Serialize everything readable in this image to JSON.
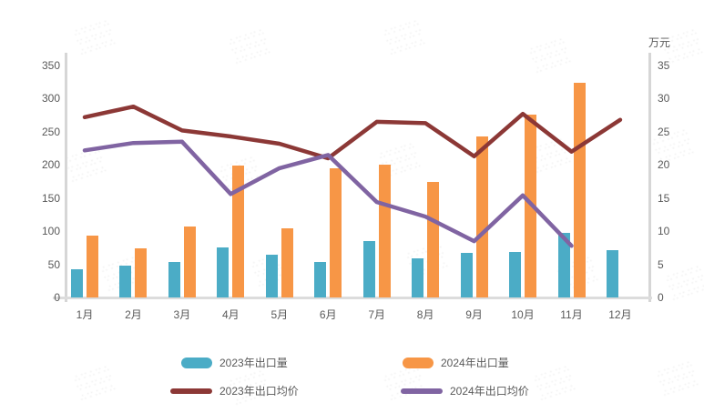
{
  "chart_data": {
    "type": "bar",
    "subtype": "bar-line-combo",
    "categories": [
      "1月",
      "2月",
      "3月",
      "4月",
      "5月",
      "6月",
      "7月",
      "8月",
      "9月",
      "10月",
      "11月",
      "12月"
    ],
    "series": [
      {
        "name": "2023年出口量",
        "type": "bar",
        "axis": "left",
        "color": "#4BACC6",
        "values": [
          42,
          48,
          53,
          76,
          64,
          53,
          85,
          59,
          67,
          68,
          97,
          71
        ]
      },
      {
        "name": "2024年出口量",
        "type": "bar",
        "axis": "left",
        "color": "#F79646",
        "values": [
          93,
          74,
          107,
          199,
          105,
          195,
          200,
          174,
          243,
          276,
          324,
          null
        ]
      },
      {
        "name": "2023年出口均价",
        "type": "line",
        "axis": "right",
        "color": "#8C3836",
        "values": [
          27.2,
          28.8,
          25.2,
          24.3,
          23.2,
          21.0,
          26.5,
          26.3,
          21.3,
          27.7,
          22.0,
          26.8
        ]
      },
      {
        "name": "2024年出口均价",
        "type": "line",
        "axis": "right",
        "color": "#8064A2",
        "values": [
          22.2,
          23.3,
          23.5,
          15.6,
          19.5,
          21.5,
          14.4,
          12.2,
          8.5,
          15.4,
          7.8,
          null
        ]
      }
    ],
    "left_axis": {
      "min": 0,
      "max": 350,
      "ticks": [
        0,
        50,
        100,
        150,
        200,
        250,
        300,
        350
      ]
    },
    "right_axis": {
      "min": 0,
      "max": 35,
      "ticks": [
        0,
        5,
        10,
        15,
        20,
        25,
        30,
        35
      ],
      "unit": "万元"
    },
    "grid": false,
    "legend_position": "bottom"
  }
}
